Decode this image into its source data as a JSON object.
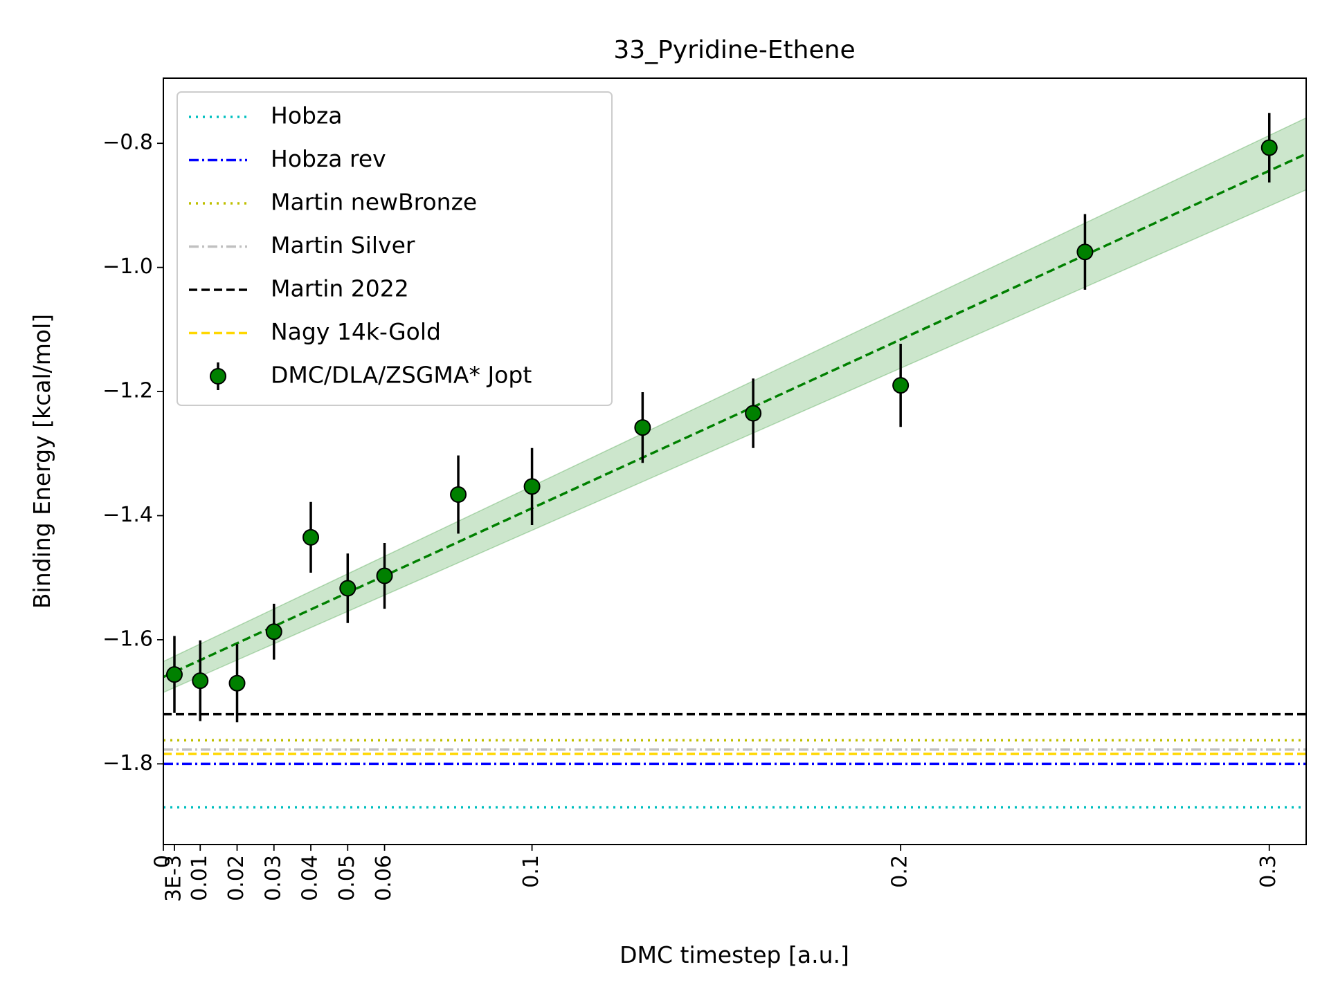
{
  "chart_data": {
    "type": "scatter",
    "title": "33_Pyridine-Ethene",
    "xlabel": "DMC timestep [a.u.]",
    "ylabel": "Binding Energy [kcal/mol]",
    "xlim": [
      0,
      0.31
    ],
    "ylim": [
      -1.93,
      -0.695
    ],
    "x_ticks": [
      {
        "value": 0,
        "label": "0"
      },
      {
        "value": 0.003,
        "label": "3E-3"
      },
      {
        "value": 0.01,
        "label": "0.01"
      },
      {
        "value": 0.02,
        "label": "0.02"
      },
      {
        "value": 0.03,
        "label": "0.03"
      },
      {
        "value": 0.04,
        "label": "0.04"
      },
      {
        "value": 0.05,
        "label": "0.05"
      },
      {
        "value": 0.06,
        "label": "0.06"
      },
      {
        "value": 0.1,
        "label": "0.1"
      },
      {
        "value": 0.2,
        "label": "0.2"
      },
      {
        "value": 0.3,
        "label": "0.3"
      }
    ],
    "y_ticks": [
      {
        "value": -0.8,
        "label": "−0.8"
      },
      {
        "value": -1.0,
        "label": "−1.0"
      },
      {
        "value": -1.2,
        "label": "−1.2"
      },
      {
        "value": -1.4,
        "label": "−1.4"
      },
      {
        "value": -1.6,
        "label": "−1.6"
      },
      {
        "value": -1.8,
        "label": "−1.8"
      }
    ],
    "grid": false,
    "legend_position": "top-left",
    "reference_lines": [
      {
        "name": "Hobza",
        "y": -1.87,
        "color": "#00bfbf",
        "style": "dotted"
      },
      {
        "name": "Hobza rev",
        "y": -1.8,
        "color": "#0000ff",
        "style": "dashdot"
      },
      {
        "name": "Martin newBronze",
        "y": -1.762,
        "color": "#bfbf00",
        "style": "dotted"
      },
      {
        "name": "Martin Silver",
        "y": -1.777,
        "color": "#c0c0c0",
        "style": "dashdot"
      },
      {
        "name": "Martin 2022",
        "y": -1.72,
        "color": "#000000",
        "style": "dashed"
      },
      {
        "name": "Nagy 14k-Gold",
        "y": -1.784,
        "color": "#ffd700",
        "style": "dashed"
      }
    ],
    "series": [
      {
        "name": "DMC/DLA/ZSGMA* Jopt",
        "color": "#008000",
        "x": [
          0.003,
          0.01,
          0.02,
          0.03,
          0.04,
          0.05,
          0.06,
          0.08,
          0.1,
          0.13,
          0.16,
          0.2,
          0.25,
          0.3
        ],
        "y": [
          -1.656,
          -1.666,
          -1.67,
          -1.587,
          -1.435,
          -1.517,
          -1.497,
          -1.366,
          -1.353,
          -1.258,
          -1.235,
          -1.19,
          -0.975,
          -0.807
        ],
        "yerr": [
          0.062,
          0.065,
          0.063,
          0.045,
          0.057,
          0.056,
          0.053,
          0.063,
          0.062,
          0.057,
          0.056,
          0.067,
          0.061,
          0.056
        ]
      }
    ],
    "fit": {
      "color": "#008000",
      "x": [
        0,
        0.31
      ],
      "y": [
        -1.66,
        -0.817
      ],
      "band_lower": [
        -1.685,
        -0.875
      ],
      "band_upper": [
        -1.635,
        -0.759
      ]
    }
  }
}
